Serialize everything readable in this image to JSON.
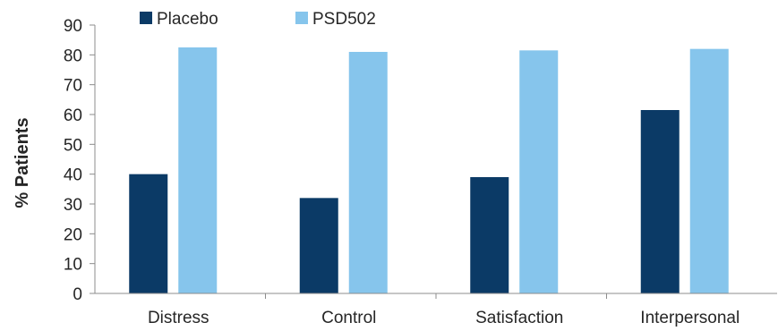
{
  "chart_data": {
    "type": "bar",
    "categories": [
      "Distress",
      "Control",
      "Satisfaction",
      "Interpersonal"
    ],
    "series": [
      {
        "name": "Placebo",
        "color": "#0b3a66",
        "values": [
          40,
          32,
          39,
          61.5
        ]
      },
      {
        "name": "PSD502",
        "color": "#86c5ec",
        "values": [
          82.5,
          81,
          81.5,
          82
        ]
      }
    ],
    "title": "",
    "xlabel": "",
    "ylabel": "% Patients",
    "ylim": [
      0,
      90
    ],
    "yticks": [
      0,
      10,
      20,
      30,
      40,
      50,
      60,
      70,
      80,
      90
    ],
    "grid": false,
    "legend_position": "top-left"
  }
}
